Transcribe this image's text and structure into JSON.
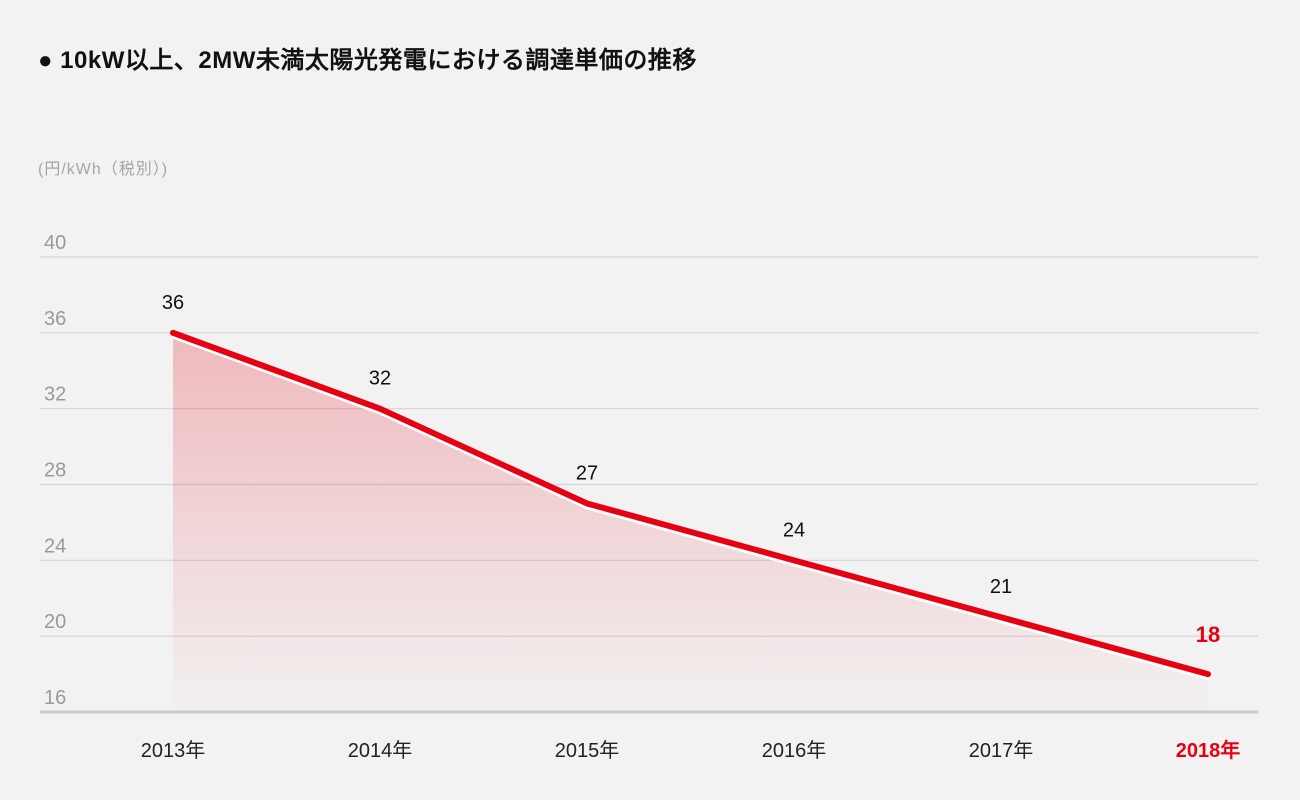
{
  "page": {
    "title": "● 10kW以上、2MW未満太陽光発電における調達単価の推移",
    "unit_label": "(円/kWh（税別）)"
  },
  "colors": {
    "background": "#f2f2f2",
    "accent_red": "#e60012",
    "grid_line": "#d5d5d5",
    "axis_line": "#c9c9c9",
    "y_tick_text": "#999999",
    "x_tick_text": "#222222",
    "data_label_text": "#111111",
    "line_under_stroke": "#ffffff"
  },
  "chart_data": {
    "type": "line",
    "title": "10kW以上、2MW未満太陽光発電における調達単価の推移",
    "ylabel": "円/kWh（税別）",
    "categories": [
      "2013年",
      "2014年",
      "2015年",
      "2016年",
      "2017年",
      "2018年"
    ],
    "values": [
      36,
      32,
      27,
      24,
      21,
      18
    ],
    "data_labels": [
      "36",
      "32",
      "27",
      "24",
      "21",
      "18"
    ],
    "ylim": [
      16,
      40
    ],
    "yticks": [
      40,
      36,
      32,
      28,
      24,
      20,
      16
    ],
    "grid": "horizontal",
    "legend": "none",
    "area_fill": true,
    "highlight_last_index": 5
  }
}
